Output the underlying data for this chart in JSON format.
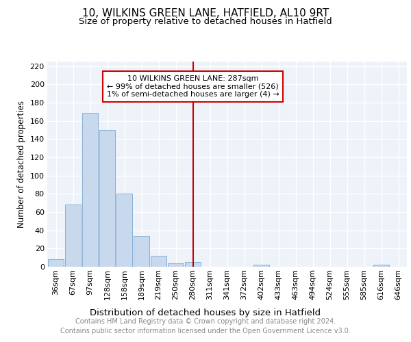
{
  "title": "10, WILKINS GREEN LANE, HATFIELD, AL10 9RT",
  "subtitle": "Size of property relative to detached houses in Hatfield",
  "xlabel": "Distribution of detached houses by size in Hatfield",
  "ylabel": "Number of detached properties",
  "categories": [
    "36sqm",
    "67sqm",
    "97sqm",
    "128sqm",
    "158sqm",
    "189sqm",
    "219sqm",
    "250sqm",
    "280sqm",
    "311sqm",
    "341sqm",
    "372sqm",
    "402sqm",
    "433sqm",
    "463sqm",
    "494sqm",
    "524sqm",
    "555sqm",
    "585sqm",
    "616sqm",
    "646sqm"
  ],
  "values": [
    8,
    68,
    169,
    150,
    80,
    34,
    12,
    4,
    5,
    0,
    0,
    0,
    2,
    0,
    0,
    0,
    0,
    0,
    0,
    2,
    0
  ],
  "bar_color": "#c8d9ee",
  "bar_edge_color": "#7aa8d0",
  "vline_x_index": 8,
  "vline_color": "#cc0000",
  "annotation_line1": "10 WILKINS GREEN LANE: 287sqm",
  "annotation_line2": "← 99% of detached houses are smaller (526)",
  "annotation_line3": "1% of semi-detached houses are larger (4) →",
  "annotation_box_color": "#cc0000",
  "ylim": [
    0,
    225
  ],
  "yticks": [
    0,
    20,
    40,
    60,
    80,
    100,
    120,
    140,
    160,
    180,
    200,
    220
  ],
  "background_color": "#eef2f9",
  "grid_color": "#ffffff",
  "footer_text": "Contains HM Land Registry data © Crown copyright and database right 2024.\nContains public sector information licensed under the Open Government Licence v3.0.",
  "title_fontsize": 11,
  "subtitle_fontsize": 9.5,
  "xlabel_fontsize": 9.5,
  "ylabel_fontsize": 8.5,
  "tick_fontsize": 8,
  "annotation_fontsize": 8,
  "footer_fontsize": 7
}
